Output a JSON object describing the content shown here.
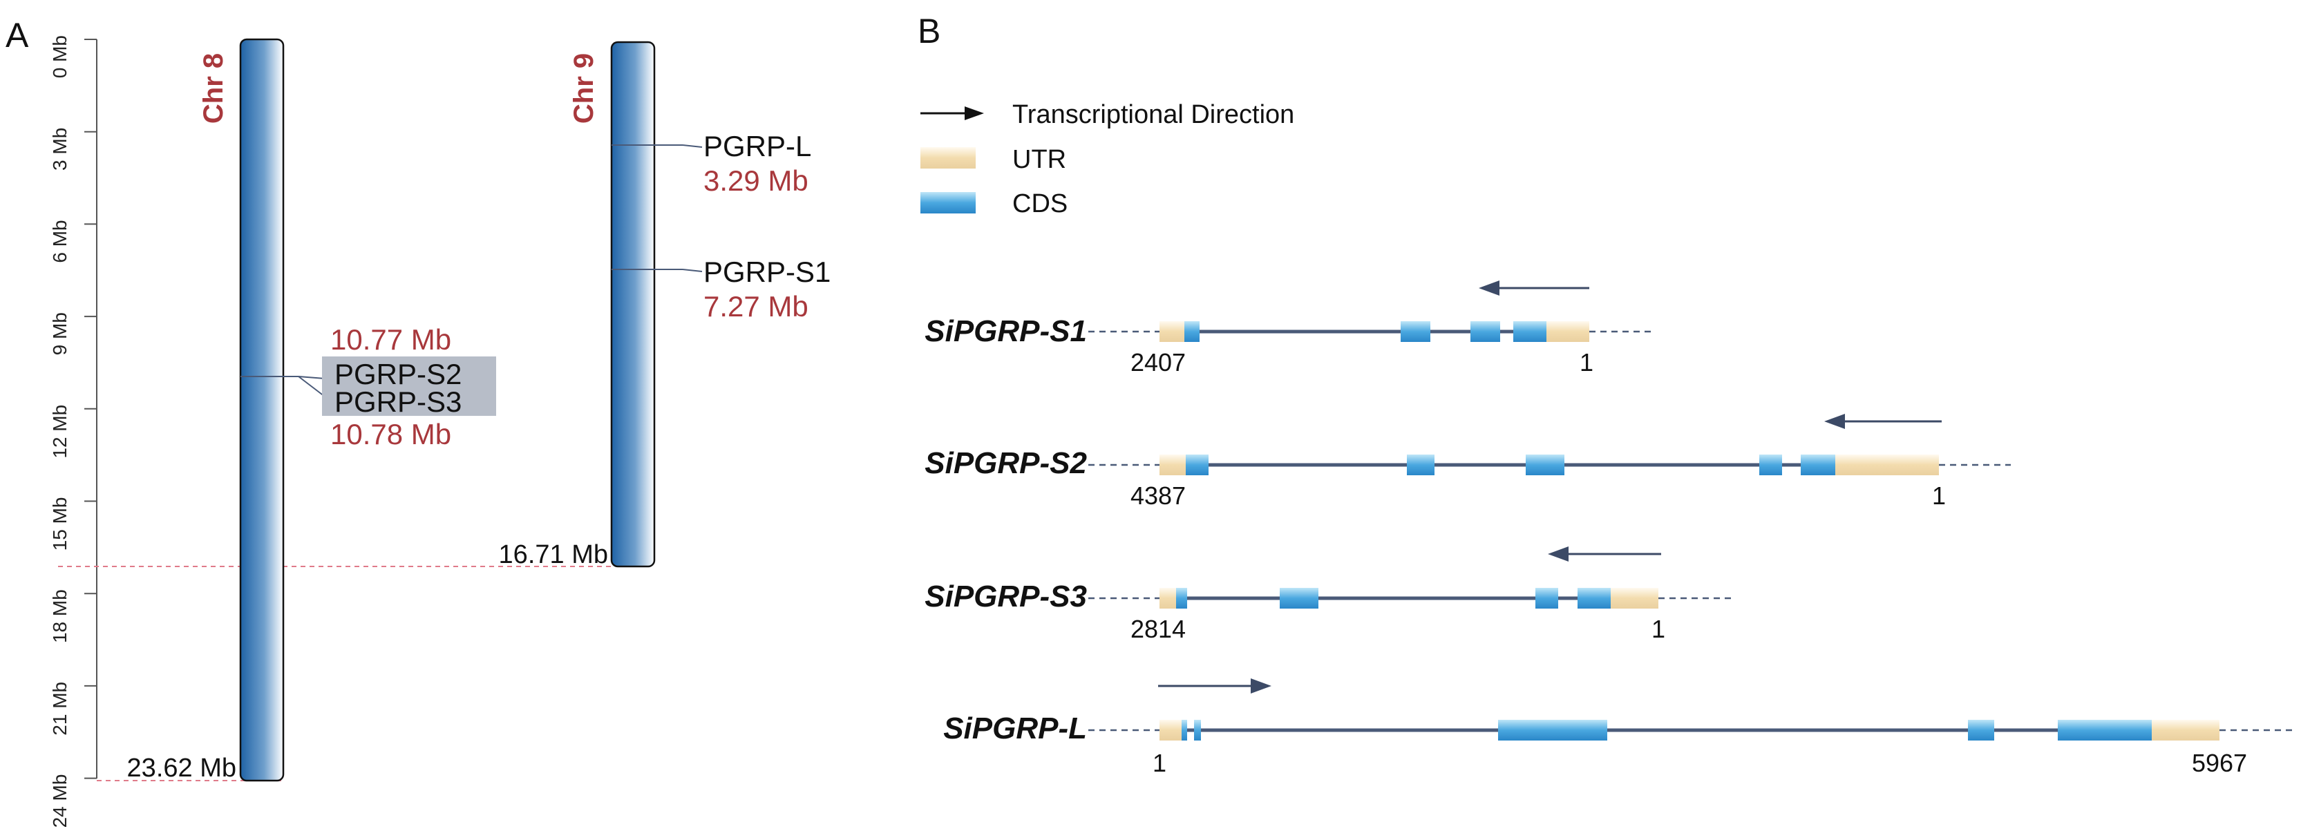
{
  "panel_a": {
    "label": "A",
    "axis_ticks": [
      "0 Mb",
      "3 Mb",
      "6 Mb",
      "9 Mb",
      "12 Mb",
      "15 Mb",
      "18 Mb",
      "21 Mb",
      "24 Mb"
    ],
    "chromosomes": [
      {
        "name": "Chr 8",
        "length_label": "23.62 Mb",
        "length_mb": 23.62,
        "genes": [
          {
            "name": "PGRP-S2",
            "position": "10.77 Mb",
            "position_mb": 10.77
          },
          {
            "name": "PGRP-S3",
            "position": "10.78 Mb",
            "position_mb": 10.78
          }
        ]
      },
      {
        "name": "Chr 9",
        "length_label": "16.71 Mb",
        "length_mb": 16.71,
        "genes": [
          {
            "name": "PGRP-L",
            "position": "3.29 Mb",
            "position_mb": 3.29
          },
          {
            "name": "PGRP-S1",
            "position": "7.27 Mb",
            "position_mb": 7.27
          }
        ]
      }
    ],
    "colors": {
      "chromosome_dark": "#1f63a6",
      "chromosome_light": "#ffffff",
      "label_red": "#a8383c",
      "highlight": "#b7bdc8",
      "guide_line": "#e07b8a"
    }
  },
  "panel_b": {
    "label": "B",
    "legend": [
      {
        "label": "Transcriptional Direction",
        "icon": "arrow-icon"
      },
      {
        "label": "UTR",
        "icon": "utr-swatch"
      },
      {
        "label": "CDS",
        "icon": "cds-swatch"
      }
    ],
    "genes": [
      {
        "name": "SiPGRP-S1",
        "start_label": "2407",
        "end_label": "1",
        "direction": "reverse"
      },
      {
        "name": "SiPGRP-S2",
        "start_label": "4387",
        "end_label": "1",
        "direction": "reverse"
      },
      {
        "name": "SiPGRP-S3",
        "start_label": "2814",
        "end_label": "1",
        "direction": "reverse"
      },
      {
        "name": "SiPGRP-L",
        "start_label": "1",
        "end_label": "5967",
        "direction": "forward"
      }
    ],
    "colors": {
      "utr": "#f3dcae",
      "cds": "#4aa8e0",
      "intron": "#4a5a78",
      "arrow": "#3c4a66"
    }
  }
}
